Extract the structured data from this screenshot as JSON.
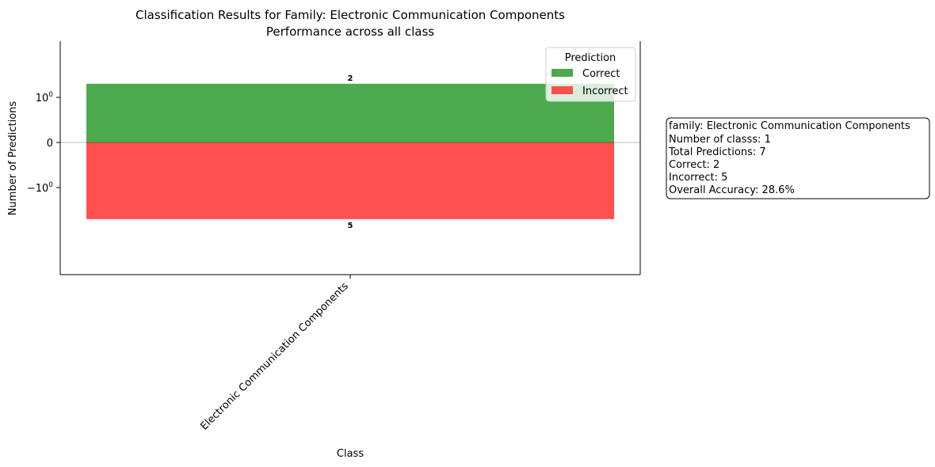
{
  "chart_data": {
    "type": "bar",
    "title": "Classification Results for Family: Electronic Communication Components",
    "subtitle": "Performance across all class",
    "xlabel": "Class",
    "ylabel": "Number of Predictions",
    "categories": [
      "Electronic Communication Components"
    ],
    "series": [
      {
        "name": "Correct",
        "values": [
          2
        ],
        "color": "#2e9a2e"
      },
      {
        "name": "Incorrect",
        "values": [
          -5
        ],
        "color": "#ff3333"
      }
    ],
    "y_scale": "symlog",
    "y_ticks": [
      {
        "value": 1,
        "label": "10^0"
      },
      {
        "value": 0,
        "label": "0"
      },
      {
        "value": -1,
        "label": "−10^0"
      }
    ],
    "data_labels": [
      "2",
      "5"
    ],
    "legend": {
      "title": "Prediction",
      "placement": "top-right"
    },
    "grid": false
  },
  "info_box": {
    "lines": [
      "family: Electronic Communication Components",
      "Number of classs: 1",
      "Total Predictions: 7",
      "Correct: 2",
      "Incorrect: 5",
      "Overall Accuracy: 28.6%"
    ]
  }
}
